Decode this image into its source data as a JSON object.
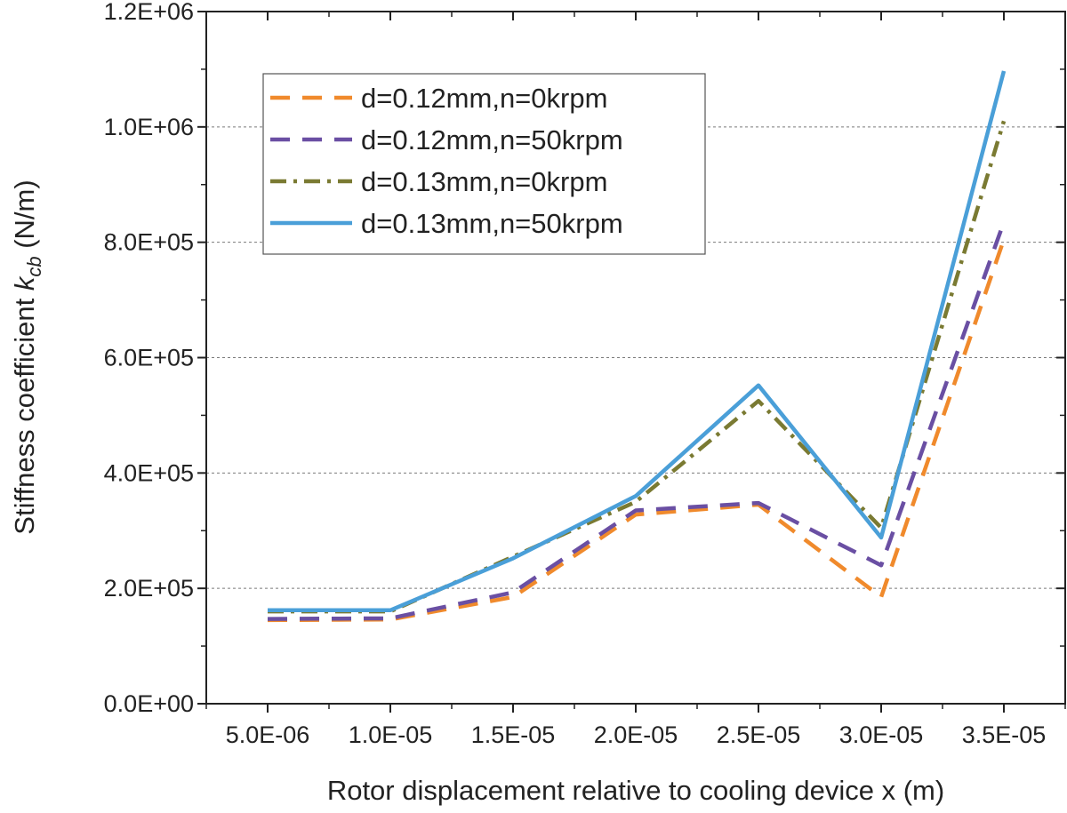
{
  "chart_data": {
    "type": "line",
    "xlabel": "Rotor displacement relative to cooling device x (m)",
    "ylabel_main": "Stiffness coefficient ",
    "ylabel_var": "k",
    "ylabel_sub": "cb",
    "ylabel_unit": " (N/m)",
    "x": [
      5e-06,
      1e-05,
      1.5e-05,
      2e-05,
      2.5e-05,
      3e-05,
      3.5e-05
    ],
    "x_tick_labels": [
      "5.0E-06",
      "1.0E-05",
      "1.5E-05",
      "2.0E-05",
      "2.5E-05",
      "3.0E-05",
      "3.5E-05"
    ],
    "xlim": [
      2.5e-06,
      3.75e-05
    ],
    "ylim": [
      0,
      1200000
    ],
    "y_ticks": [
      0,
      200000,
      400000,
      600000,
      800000,
      1000000,
      1200000
    ],
    "y_tick_labels": [
      "0.0E+00",
      "2.0E+05",
      "4.0E+05",
      "6.0E+05",
      "8.0E+05",
      "1.0E+06",
      "1.2E+06"
    ],
    "grid": "horizontal dashed",
    "legend_position": "top-left",
    "series": [
      {
        "name": "d=0.12mm,n=0krpm",
        "color": "#F08A2C",
        "dash": "dashed",
        "values": [
          145000,
          146000,
          185000,
          328000,
          345000,
          185000,
          805000
        ]
      },
      {
        "name": "d=0.12mm,n=50krpm",
        "color": "#6A4FA3",
        "dash": "dashed",
        "values": [
          147000,
          148000,
          193000,
          335000,
          348000,
          240000,
          835000
        ]
      },
      {
        "name": "d=0.13mm,n=0krpm",
        "color": "#7A7A32",
        "dash": "dashdot",
        "values": [
          160000,
          160000,
          255000,
          350000,
          525000,
          305000,
          1010000
        ]
      },
      {
        "name": "d=0.13mm,n=50krpm",
        "color": "#4A9FD8",
        "dash": "solid",
        "values": [
          162000,
          162000,
          252000,
          360000,
          552000,
          288000,
          1097000
        ]
      }
    ]
  }
}
